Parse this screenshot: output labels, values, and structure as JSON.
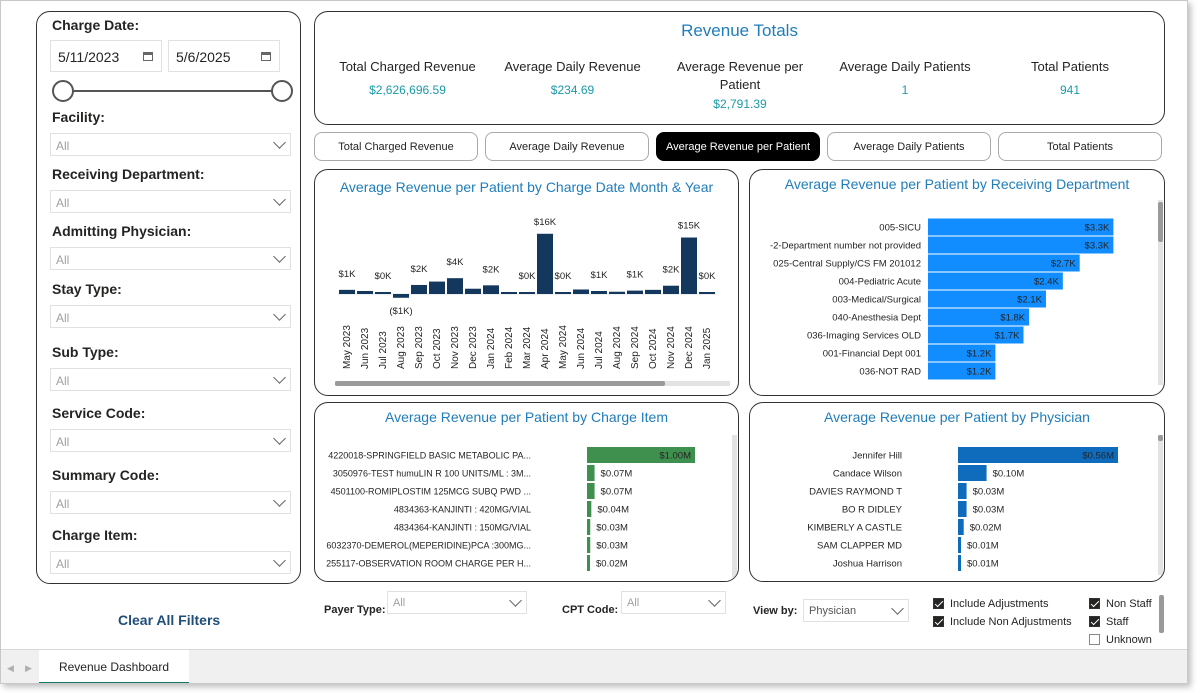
{
  "filters": {
    "charge_date_label": "Charge Date:",
    "start_date": "5/11/2023",
    "end_date": "5/6/2025",
    "items": [
      {
        "label": "Facility:",
        "value": "All"
      },
      {
        "label": "Receiving Department:",
        "value": "All"
      },
      {
        "label": "Admitting Physician:",
        "value": "All"
      },
      {
        "label": "Stay Type:",
        "value": "All"
      },
      {
        "label": "Sub Type:",
        "value": "All"
      },
      {
        "label": "Service Code:",
        "value": "All"
      },
      {
        "label": "Summary Code:",
        "value": "All"
      },
      {
        "label": "Charge Item:",
        "value": "All"
      }
    ],
    "clear_all": "Clear All Filters"
  },
  "totals": {
    "title": "Revenue Totals",
    "kpis": [
      {
        "label": "Total Charged Revenue",
        "value": "$2,626,696.59"
      },
      {
        "label": "Average Daily Revenue",
        "value": "$234.69"
      },
      {
        "label": "Average Revenue per Patient",
        "value": "$2,791.39"
      },
      {
        "label": "Average Daily Patients",
        "value": "1"
      },
      {
        "label": "Total Patients",
        "value": "941"
      }
    ]
  },
  "metric_buttons": [
    {
      "label": "Total Charged Revenue",
      "active": false
    },
    {
      "label": "Average Daily Revenue",
      "active": false
    },
    {
      "label": "Average Revenue per Patient",
      "active": true
    },
    {
      "label": "Average Daily Patients",
      "active": false
    },
    {
      "label": "Total Patients",
      "active": false
    }
  ],
  "colors": {
    "accent": "#1f7dbb",
    "kpi_value": "#1a9aa8",
    "month_bar": "#14375e",
    "department_bar": "#118dff",
    "charge_item_bar": "#3f8f4f",
    "physician_bar": "#0f6cbd"
  },
  "chart_data": [
    {
      "type": "bar",
      "title": "Average Revenue per Patient by Charge Date Month & Year",
      "categories": [
        "May 2023",
        "Jun 2023",
        "Jul 2023",
        "Aug 2023",
        "Sep 2023",
        "Oct 2023",
        "Nov 2023",
        "Dec 2023",
        "Jan 2024",
        "Feb 2024",
        "Mar 2024",
        "Apr 2024",
        "May 2024",
        "Jun 2024",
        "Jul 2024",
        "Aug 2024",
        "Sep 2024",
        "Oct 2024",
        "Nov 2024",
        "Dec 2024",
        "Jan 2025"
      ],
      "values": [
        1100,
        800,
        300,
        -1000,
        2400,
        3300,
        4200,
        1400,
        2300,
        400,
        300,
        16000,
        400,
        1200,
        800,
        600,
        900,
        1100,
        2200,
        15000,
        200
      ],
      "data_labels": [
        "$1K",
        "",
        "$0K",
        "($1K)",
        "$2K",
        "",
        "$4K",
        "",
        "$2K",
        "",
        "$0K",
        "$16K",
        "$0K",
        "",
        "$1K",
        "",
        "$1K",
        "",
        "$2K",
        "$15K",
        "$0K"
      ],
      "xlabel": "",
      "ylabel": "",
      "ylim": [
        -2000,
        17000
      ],
      "grid": false
    },
    {
      "type": "bar",
      "orientation": "horizontal",
      "title": "Average Revenue per Patient by Receiving Department",
      "categories": [
        "005-SICU",
        "-2-Department number not provided",
        "025-Central Supply/CS FM 201012",
        "004-Pediatric Acute",
        "003-Medical/Surgical",
        "040-Anesthesia Dept",
        "036-Imaging Services OLD",
        "001-Financial Dept 001",
        "036-NOT RAD"
      ],
      "values": [
        3300,
        3300,
        2700,
        2400,
        2100,
        1800,
        1700,
        1200,
        1200
      ],
      "data_labels": [
        "$3.3K",
        "$3.3K",
        "$2.7K",
        "$2.4K",
        "$2.1K",
        "$1.8K",
        "$1.7K",
        "$1.2K",
        "$1.2K"
      ],
      "xlim": [
        0,
        3400
      ]
    },
    {
      "type": "bar",
      "orientation": "horizontal",
      "title": "Average Revenue per Patient by Charge Item",
      "categories": [
        "4220018-SPRINGFIELD BASIC METABOLIC PA...",
        "3050976-TEST humuLIN R 100 UNITS/ML : 3M...",
        "4501100-ROMIPLOSTIM 125MCG SUBQ PWD ...",
        "4834363-KANJINTI : 420MG/VIAL",
        "4834364-KANJINTI : 150MG/VIAL",
        "6032370-DEMEROL(MEPERIDINE)PCA :300MG...",
        "255117-OBSERVATION ROOM CHARGE PER H..."
      ],
      "values": [
        1000000,
        70000,
        70000,
        40000,
        30000,
        30000,
        20000
      ],
      "data_labels": [
        "$1.00M",
        "$0.07M",
        "$0.07M",
        "$0.04M",
        "$0.03M",
        "$0.03M",
        "$0.02M"
      ],
      "xlim": [
        0,
        1000000
      ]
    },
    {
      "type": "bar",
      "orientation": "horizontal",
      "title": "Average Revenue per Patient by Physician",
      "categories": [
        "Jennifer Hill",
        "Candace Wilson",
        "DAVIES RAYMOND T",
        "BO R DIDLEY",
        "KIMBERLY A CASTLE",
        "SAM CLAPPER MD",
        "Joshua Harrison"
      ],
      "values": [
        560000,
        100000,
        30000,
        30000,
        20000,
        10000,
        10000
      ],
      "data_labels": [
        "$0.56M",
        "$0.10M",
        "$0.03M",
        "$0.03M",
        "$0.02M",
        "$0.01M",
        "$0.01M"
      ],
      "xlim": [
        0,
        560000
      ]
    }
  ],
  "bottom": {
    "payer_type_label": "Payer Type:",
    "payer_type_value": "All",
    "cpt_code_label": "CPT Code:",
    "cpt_code_value": "All",
    "view_by_label": "View by:",
    "view_by_value": "Physician",
    "include_adjustments": "Include Adjustments",
    "include_non_adjustments": "Include Non Adjustments",
    "non_staff": "Non Staff",
    "staff": "Staff",
    "unknown": "Unknown"
  },
  "tabs": {
    "active": "Revenue Dashboard"
  }
}
